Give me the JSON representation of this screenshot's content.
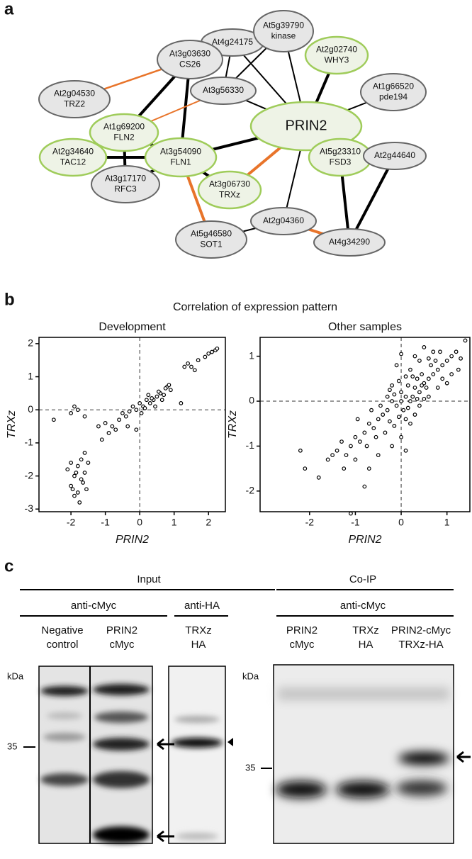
{
  "panel_labels": [
    "a",
    "b",
    "c"
  ],
  "network": {
    "nodes": [
      {
        "lines": [
          "At4g24175"
        ]
      },
      {
        "lines": [
          "At5g39790",
          "kinase"
        ]
      },
      {
        "lines": [
          "At3g03630",
          "CS26"
        ]
      },
      {
        "lines": [
          "At2g02740",
          "WHY3"
        ]
      },
      {
        "lines": [
          "At2g04530",
          "TRZ2"
        ]
      },
      {
        "lines": [
          "At3g56330"
        ]
      },
      {
        "lines": [
          "At1g66520",
          "pde194"
        ]
      },
      {
        "lines": [
          "PRIN2"
        ]
      },
      {
        "lines": [
          "At1g69200",
          "FLN2"
        ]
      },
      {
        "lines": [
          "At2g34640",
          "TAC12"
        ]
      },
      {
        "lines": [
          "At3g54090",
          "FLN1"
        ]
      },
      {
        "lines": [
          "At5g23310",
          "FSD3"
        ]
      },
      {
        "lines": [
          "At2g44640"
        ]
      },
      {
        "lines": [
          "At3g17170",
          "RFC3"
        ]
      },
      {
        "lines": [
          "At3g06730",
          "TRXz"
        ]
      },
      {
        "lines": [
          "At2g04360"
        ]
      },
      {
        "lines": [
          "At5g46580",
          "SOT1"
        ]
      },
      {
        "lines": [
          "At4g34290"
        ]
      }
    ]
  },
  "correlation_title": "Correlation of expression pattern",
  "chart_data": [
    {
      "type": "scatter",
      "title": "Development",
      "x_label": "PRIN2",
      "y_label": "TRXz",
      "x": [
        2.2,
        2.1,
        2.25,
        2.0,
        1.9,
        1.7,
        1.5,
        1.4,
        1.6,
        1.3,
        0.8,
        0.85,
        0.9,
        0.75,
        0.6,
        0.5,
        0.4,
        0.3,
        0.2,
        0.1,
        0,
        -0.1,
        0.05,
        0.15,
        0.35,
        0.45,
        0.55,
        0.65,
        0.7,
        1.2,
        0.25,
        -0.2,
        -0.3,
        -0.4,
        -0.5,
        -0.6,
        -0.7,
        -0.8,
        -0.9,
        -1.0,
        -1.1,
        -1.2,
        -0.35,
        -0.1,
        -1.6,
        -1.7,
        -1.8,
        -1.9,
        -2.0,
        -1.7,
        -1.8,
        -1.9,
        -1.6,
        -1.5,
        -2.1,
        -1.75,
        -1.95,
        -1.65,
        -1.85,
        -2.0,
        -1.55,
        -2.5,
        -1.9,
        -1.8,
        -1.6,
        -2.0
      ],
      "values": [
        1.8,
        1.75,
        1.85,
        1.7,
        1.6,
        1.5,
        1.3,
        1.4,
        1.2,
        1.3,
        0.7,
        0.75,
        0.6,
        0.65,
        0.5,
        0.4,
        0.3,
        0.2,
        0.3,
        0.1,
        0.2,
        0,
        -0.1,
        0.05,
        0.35,
        0.1,
        0.55,
        0.3,
        0.45,
        0.2,
        0.45,
        0.1,
        -0.05,
        -0.2,
        -0.1,
        -0.3,
        -0.6,
        -0.5,
        -0.7,
        -0.4,
        -0.9,
        -0.5,
        -0.5,
        -0.6,
        -1.3,
        -1.5,
        -1.7,
        -2.0,
        -2.3,
        -2.1,
        -2.5,
        -2.6,
        -1.9,
        -1.6,
        -1.8,
        -2.8,
        -2.4,
        -2.2,
        -1.9,
        -1.6,
        -2.4,
        -0.3,
        0.1,
        0,
        -0.2,
        -0.1
      ],
      "xlim": [
        -2.93,
        2.49
      ],
      "ylim": [
        -3.08,
        2.19
      ],
      "xticks": [
        -2,
        -1,
        0,
        1,
        2
      ],
      "yticks": [
        -3,
        -2,
        -1,
        0,
        1,
        2
      ],
      "reference_x": 0,
      "reference_y": 0
    },
    {
      "type": "scatter",
      "title": "Other samples",
      "x_label": "PRIN2",
      "y_label": "TRXz",
      "x": [
        0,
        0.1,
        -0.1,
        0.2,
        0,
        -0.2,
        0.05,
        0.3,
        0.25,
        -0.3,
        0.15,
        -0.15,
        0.4,
        0.35,
        -0.4,
        -0.25,
        0.5,
        0.45,
        0.6,
        0.55,
        -0.5,
        -0.45,
        0.7,
        0.65,
        0.8,
        0.75,
        0.9,
        1.0,
        1.1,
        1.2,
        1.3,
        1.4,
        1.25,
        0.85,
        0.2,
        0.1,
        -0.05,
        -0.2,
        -0.3,
        0.3,
        0.4,
        0.5,
        0.6,
        0.2,
        0.1,
        -0.6,
        -0.7,
        -0.55,
        -0.8,
        -0.9,
        -1.0,
        -0.75,
        -1.1,
        -1.2,
        -1.3,
        -1.0,
        -0.95,
        -1.4,
        -1.25,
        -1.6,
        -1.8,
        -2.1,
        -2.2,
        -1.1,
        -0.8,
        -0.7,
        -0.2,
        -0.5,
        0,
        0.1,
        0.8,
        0.9,
        1.0,
        0.7,
        0.4,
        0.5,
        0.3,
        1.1,
        -0.1,
        0,
        0.6,
        -0.35,
        -0.65,
        0.25,
        -0.05,
        0.15,
        0.35,
        -0.15,
        0.45,
        -0.25,
        -1.5
      ],
      "values": [
        0,
        0.1,
        -0.1,
        0,
        0.2,
        0,
        -0.2,
        0.3,
        0.1,
        -0.2,
        0.35,
        0.15,
        0.2,
        0.5,
        -0.3,
        -0.45,
        0.4,
        0.6,
        0.5,
        0.3,
        -0.4,
        -0.1,
        0.6,
        0.8,
        0.7,
        0.9,
        0.8,
        0.9,
        1.0,
        1.1,
        0.95,
        1.35,
        0.7,
        1.1,
        0.7,
        0.55,
        0.45,
        0.35,
        0.1,
        -0.3,
        -0.1,
        0.05,
        0.1,
        -0.5,
        -0.4,
        -0.6,
        -0.5,
        -0.8,
        -0.7,
        -0.9,
        -0.8,
        -1.0,
        -1.0,
        -1.2,
        -0.9,
        -1.3,
        -0.4,
        -1.1,
        -1.5,
        -1.3,
        -1.7,
        -1.5,
        -1.1,
        -2.5,
        -1.9,
        -1.5,
        -1.0,
        -1.2,
        -0.8,
        -1.1,
        0.3,
        0.5,
        0.4,
        1.1,
        0.9,
        1.2,
        1.0,
        0.6,
        0.8,
        1.05,
        0.95,
        -0.7,
        -0.2,
        0.55,
        -0.35,
        -0.15,
        0.05,
        -0.55,
        0.35,
        0.25,
        -1.2
      ],
      "xlim": [
        -3.08,
        1.5
      ],
      "ylim": [
        -2.46,
        1.42
      ],
      "xticks": [
        -2,
        -1,
        0,
        1
      ],
      "yticks": [
        -2,
        -1,
        0,
        1
      ],
      "reference_x": 0,
      "reference_y": 0
    }
  ],
  "blot": {
    "input": {
      "heading": "Input",
      "antibodies": [
        "anti-cMyc",
        "anti-HA"
      ],
      "lanes": [
        [
          "Negative",
          "control"
        ],
        [
          "PRIN2",
          "cMyc"
        ],
        [
          "TRXz",
          "HA"
        ]
      ],
      "unit": "kDa",
      "marker": "35"
    },
    "coip": {
      "heading": "Co-IP",
      "antibody": "anti-cMyc",
      "lanes": [
        [
          "PRIN2",
          "cMyc"
        ],
        [
          "TRXz",
          "HA"
        ],
        [
          "PRIN2-cMyc",
          "TRXz-HA"
        ]
      ],
      "unit": "kDa",
      "marker": "35"
    }
  }
}
